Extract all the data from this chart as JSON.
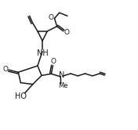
{
  "bg_color": "#ffffff",
  "line_color": "#1a1a1a",
  "line_width": 1.1,
  "font_size": 6.5,
  "figsize": [
    1.76,
    1.66
  ],
  "dpi": 100,
  "xlim": [
    0,
    17
  ],
  "ylim": [
    0,
    16
  ]
}
